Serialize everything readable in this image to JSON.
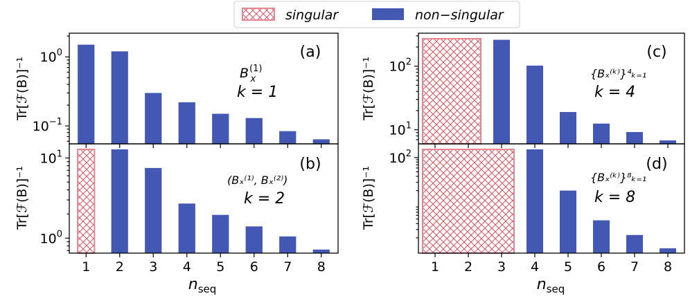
{
  "legend": {
    "singular_label": "singular",
    "nonsingular_label": "non−singular"
  },
  "colors": {
    "bar": "#4358b3",
    "hatch": "#e0505f"
  },
  "xlabel_base": "n",
  "xlabel_sub": "seq",
  "ylabel": "Tr[ℱ(B)]⁻¹",
  "chart_data": [
    {
      "type": "bar",
      "id": "a",
      "panel_label": "(a)",
      "k": 1,
      "annot_main": "B",
      "annot_sub": "x",
      "annot_sup": "(1)",
      "annot_k": "k = 1",
      "yscale": "log",
      "ylim": [
        0.055,
        2.2
      ],
      "yticks": [
        {
          "value": 1,
          "base": "10",
          "exp": "0"
        },
        {
          "value": 0.1,
          "base": "10",
          "exp": "−1"
        }
      ],
      "categories": [
        1,
        2,
        3,
        4,
        5,
        6,
        7,
        8
      ],
      "values": [
        1.5,
        1.2,
        0.3,
        0.22,
        0.15,
        0.13,
        0.084,
        0.064
      ],
      "singular": []
    },
    {
      "type": "bar",
      "id": "b",
      "panel_label": "(b)",
      "k": 2,
      "annot_text": "(Bₓ⁽¹⁾, Bₓ⁽²⁾)",
      "annot_k": "k = 2",
      "yscale": "log",
      "ylim": [
        0.65,
        15
      ],
      "yticks": [
        {
          "value": 10,
          "base": "10",
          "exp": "1"
        },
        {
          "value": 1,
          "base": "10",
          "exp": "0"
        }
      ],
      "categories": [
        1,
        2,
        3,
        4,
        5,
        6,
        7,
        8
      ],
      "values": [
        null,
        14,
        7.5,
        2.7,
        1.95,
        1.4,
        1.05,
        0.72
      ],
      "singular": [
        1
      ]
    },
    {
      "type": "bar",
      "id": "c",
      "panel_label": "(c)",
      "k": 4,
      "annot_text": "{Bₓ⁽ᵏ⁾}⁴ₖ₌₁",
      "annot_k": "k = 4",
      "yscale": "log",
      "ylim": [
        6,
        330
      ],
      "yticks": [
        {
          "value": 100,
          "base": "10",
          "exp": "2"
        },
        {
          "value": 10,
          "base": "10",
          "exp": "1"
        }
      ],
      "categories": [
        1,
        2,
        3,
        4,
        5,
        6,
        7,
        8
      ],
      "values": [
        null,
        null,
        260,
        102,
        19,
        12.5,
        9.2,
        6.8
      ],
      "singular": [
        1,
        2
      ]
    },
    {
      "type": "bar",
      "id": "d",
      "panel_label": "(d)",
      "k": 8,
      "annot_text": "{Bₓ⁽ᵏ⁾}⁸ₖ₌₁",
      "annot_k": "k = 8",
      "yscale": "log",
      "ylim": [
        0.95,
        195
      ],
      "yticks": [
        {
          "value": 100,
          "base": "10",
          "exp": "2"
        }
      ],
      "categories": [
        1,
        2,
        3,
        4,
        5,
        6,
        7,
        8
      ],
      "values": [
        null,
        null,
        null,
        150,
        20,
        4.7,
        2.3,
        1.2
      ],
      "singular": [
        1,
        2,
        3
      ]
    }
  ]
}
